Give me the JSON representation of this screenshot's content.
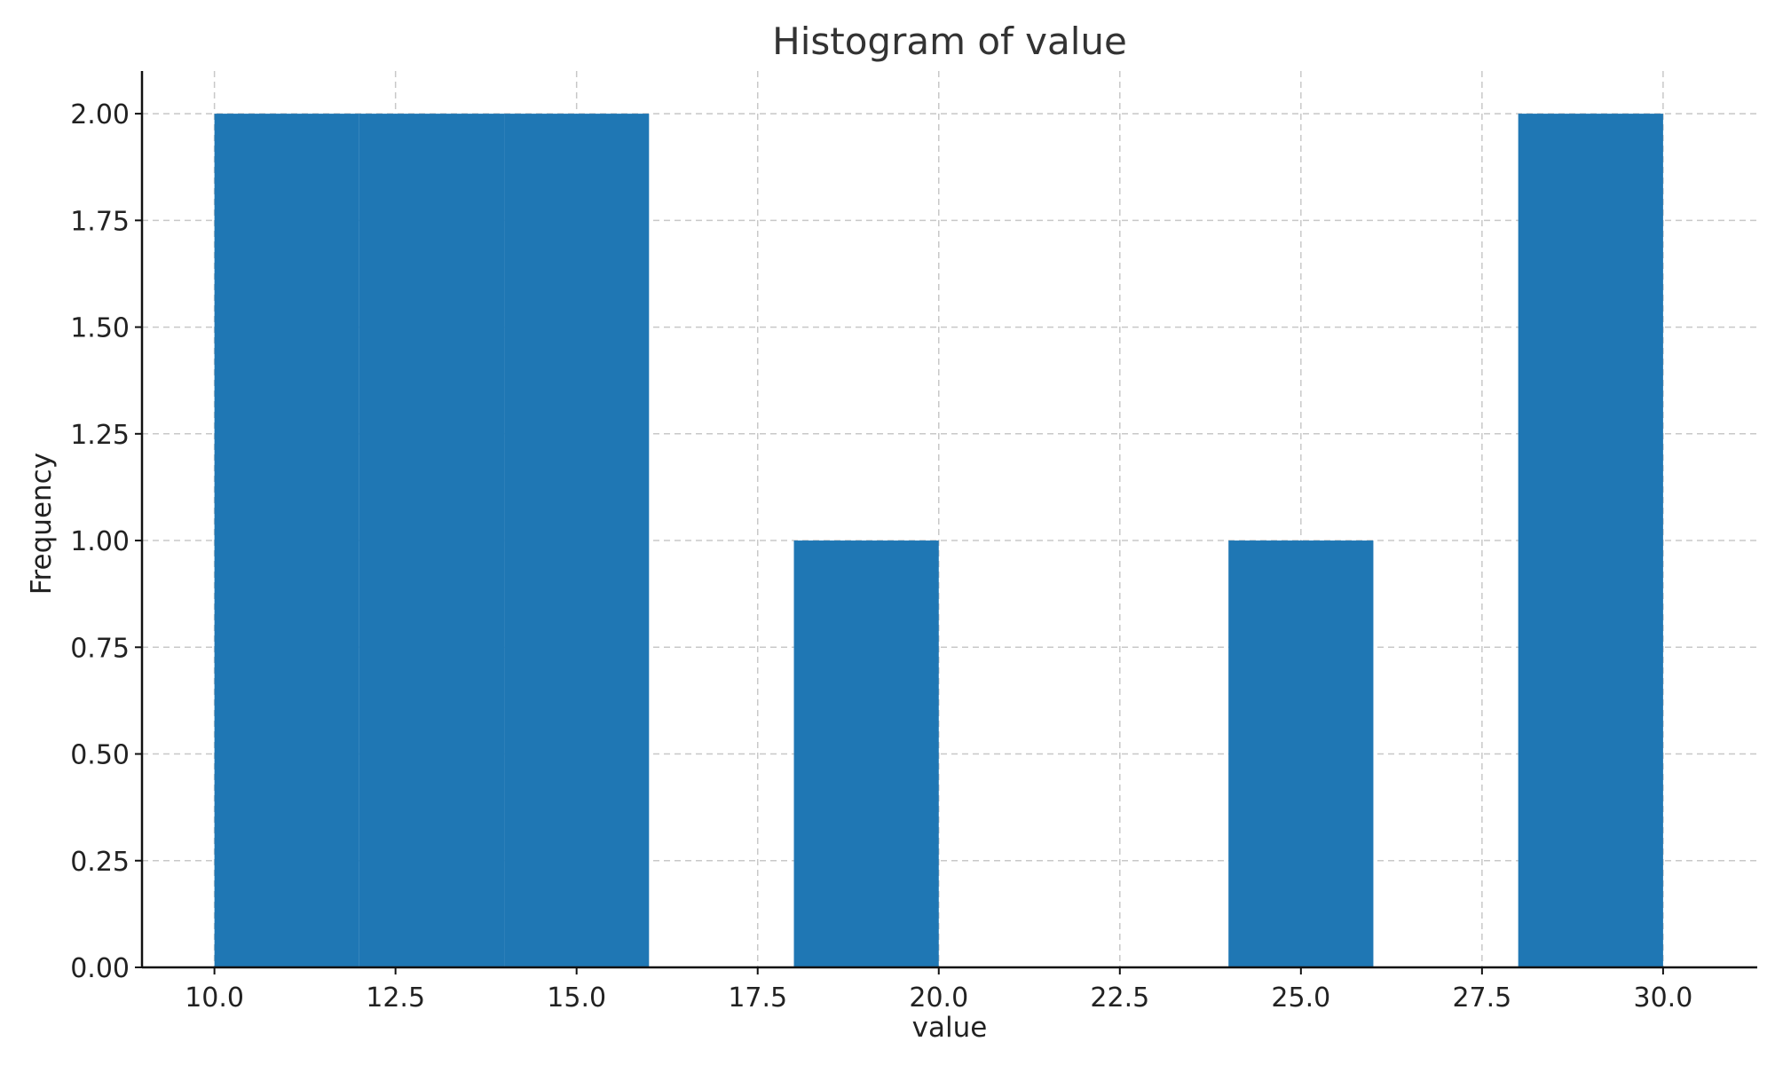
{
  "chart_data": {
    "type": "bar",
    "title": "Histogram of value",
    "xlabel": "value",
    "ylabel": "Frequency",
    "xlim": [
      9.0,
      31.3
    ],
    "ylim": [
      0,
      2.1
    ],
    "x_ticks": [
      10.0,
      12.5,
      15.0,
      17.5,
      20.0,
      22.5,
      25.0,
      27.5,
      30.0
    ],
    "x_tick_labels": [
      "10.0",
      "12.5",
      "15.0",
      "17.5",
      "20.0",
      "22.5",
      "25.0",
      "27.5",
      "30.0"
    ],
    "y_ticks": [
      0,
      0.25,
      0.5,
      0.75,
      1.0,
      1.25,
      1.5,
      1.75,
      2.0
    ],
    "y_tick_labels": [
      "0.00",
      "0.25",
      "0.50",
      "0.75",
      "1.00",
      "1.25",
      "1.50",
      "1.75",
      "2.00"
    ],
    "bins": [
      {
        "start": 10,
        "end": 12,
        "count": 2
      },
      {
        "start": 12,
        "end": 14,
        "count": 2
      },
      {
        "start": 14,
        "end": 16,
        "count": 2
      },
      {
        "start": 16,
        "end": 18,
        "count": 0
      },
      {
        "start": 18,
        "end": 20,
        "count": 1
      },
      {
        "start": 20,
        "end": 22,
        "count": 0
      },
      {
        "start": 22,
        "end": 24,
        "count": 0
      },
      {
        "start": 24,
        "end": 26,
        "count": 1
      },
      {
        "start": 26,
        "end": 28,
        "count": 0
      },
      {
        "start": 28,
        "end": 30,
        "count": 2
      }
    ],
    "grid": true,
    "colors": {
      "bar": "#1f77b4"
    }
  }
}
